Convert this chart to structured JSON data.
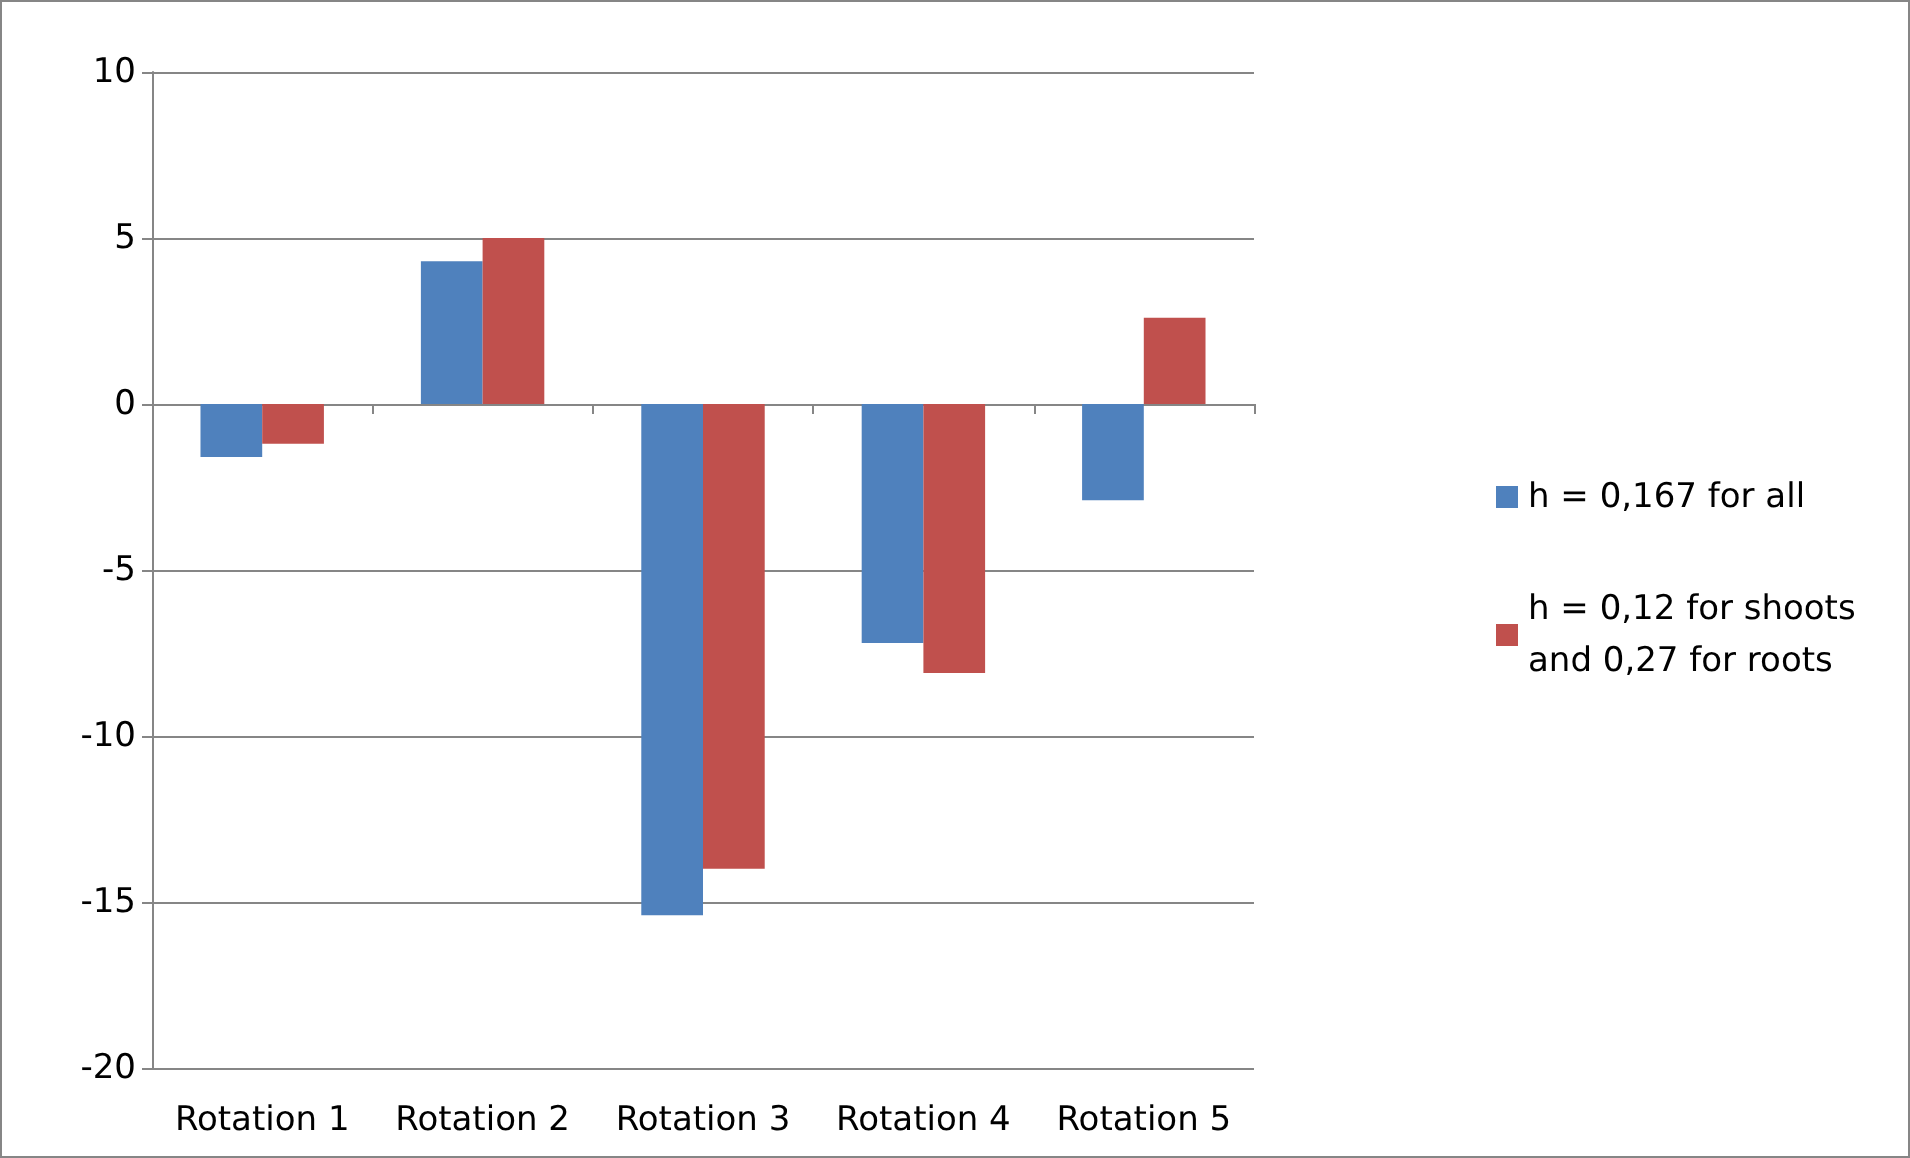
{
  "chart_data": {
    "type": "bar",
    "categories": [
      "Rotation 1",
      "Rotation 2",
      "Rotation 3",
      "Rotation 4",
      "Rotation 5"
    ],
    "series": [
      {
        "name": "h = 0,167 for all",
        "color": "#4f81bd",
        "values": [
          -1.6,
          4.3,
          -15.4,
          -7.2,
          -2.9
        ]
      },
      {
        "name": "h = 0,12 for shoots and 0,27 for roots",
        "color": "#c0504d",
        "values": [
          -1.2,
          5.0,
          -14.0,
          -8.1,
          2.6
        ]
      }
    ],
    "ylim": [
      -20,
      10
    ],
    "yticks": [
      -20,
      -15,
      -10,
      -5,
      0,
      5,
      10
    ],
    "grid": "y",
    "legend": "right"
  }
}
